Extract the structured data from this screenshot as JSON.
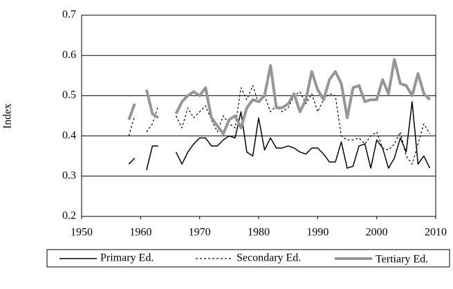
{
  "chart_data": {
    "type": "line",
    "ylabel": "Index",
    "x": [
      1958,
      1959,
      1960,
      1961,
      1962,
      1963,
      1964,
      1965,
      1966,
      1967,
      1968,
      1969,
      1970,
      1971,
      1972,
      1973,
      1974,
      1975,
      1976,
      1977,
      1978,
      1979,
      1980,
      1981,
      1982,
      1983,
      1984,
      1985,
      1986,
      1987,
      1988,
      1989,
      1990,
      1991,
      1992,
      1993,
      1994,
      1995,
      1996,
      1997,
      1998,
      1999,
      2000,
      2001,
      2002,
      2003,
      2004,
      2005,
      2006,
      2007,
      2008,
      2009
    ],
    "series": [
      {
        "name": "Primary Ed.",
        "color": "#000000",
        "dash": "solid",
        "line_width": 1.5,
        "values": [
          0.33,
          0.345,
          null,
          0.315,
          0.375,
          0.375,
          null,
          null,
          0.36,
          0.33,
          0.36,
          0.38,
          0.395,
          0.395,
          0.375,
          0.375,
          0.39,
          0.4,
          0.395,
          0.46,
          0.36,
          0.35,
          0.445,
          0.365,
          0.395,
          0.37,
          0.37,
          0.375,
          0.37,
          0.36,
          0.355,
          0.37,
          0.37,
          0.355,
          0.335,
          0.335,
          0.385,
          0.32,
          0.325,
          0.375,
          0.38,
          0.32,
          0.39,
          0.37,
          0.32,
          0.345,
          0.395,
          0.36,
          0.485,
          0.33,
          0.35,
          0.32
        ]
      },
      {
        "name": "Secondary Ed.",
        "color": "#000000",
        "dash": "dotted",
        "line_width": 1.2,
        "values": [
          0.4,
          0.45,
          null,
          0.41,
          0.43,
          0.475,
          null,
          null,
          0.45,
          0.42,
          0.47,
          0.445,
          0.46,
          0.475,
          0.44,
          0.41,
          0.45,
          0.43,
          0.42,
          0.52,
          0.49,
          0.525,
          0.48,
          0.5,
          0.46,
          0.475,
          0.46,
          0.47,
          0.5,
          0.51,
          0.48,
          0.505,
          0.46,
          0.49,
          0.505,
          0.5,
          0.4,
          0.39,
          0.39,
          0.395,
          0.38,
          0.4,
          0.41,
          0.37,
          0.365,
          0.38,
          0.41,
          0.35,
          0.33,
          0.38,
          0.43,
          0.405
        ]
      },
      {
        "name": "Tertiary Ed.",
        "color": "#969696",
        "dash": "solid",
        "line_width": 4,
        "values": [
          0.44,
          0.48,
          null,
          0.515,
          0.455,
          0.445,
          null,
          null,
          0.455,
          0.485,
          0.5,
          0.51,
          0.5,
          0.52,
          0.445,
          0.425,
          0.405,
          0.44,
          0.45,
          0.42,
          0.47,
          0.49,
          0.485,
          0.5,
          0.575,
          0.47,
          0.47,
          0.48,
          0.505,
          0.46,
          0.49,
          0.56,
          0.515,
          0.49,
          0.54,
          0.56,
          0.53,
          0.445,
          0.52,
          0.525,
          0.485,
          0.49,
          0.49,
          0.54,
          0.505,
          0.59,
          0.53,
          0.525,
          0.5,
          0.555,
          0.505,
          0.49
        ]
      }
    ],
    "xlim": [
      1950,
      2010
    ],
    "xticks": [
      1950,
      1960,
      1970,
      1980,
      1990,
      2000,
      2010
    ],
    "ylim": [
      0.2,
      0.7
    ],
    "yticks": [
      0.2,
      0.3,
      0.4,
      0.5,
      0.6,
      0.7
    ],
    "grid": true,
    "legend": "bottom"
  }
}
